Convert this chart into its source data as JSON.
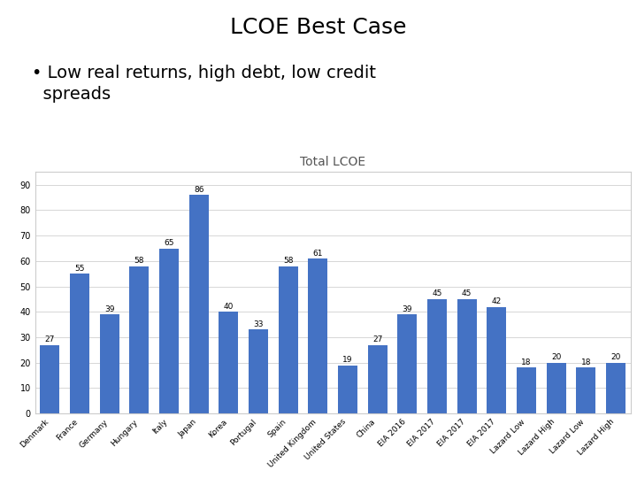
{
  "title": "LCOE Best Case",
  "subtitle_line1": "• Low real returns, high debt, low credit",
  "subtitle_line2": "  spreads",
  "chart_title": "Total LCOE",
  "categories": [
    "Denmark",
    "France",
    "Germany",
    "Hungary",
    "Italy",
    "Japan",
    "Korea",
    "Portugal",
    "Spain",
    "United Kingdom",
    "United States",
    "China",
    "EIA 2016",
    "EIA 2017",
    "EIA 2017",
    "EIA 2017",
    "Lazard Low",
    "Lazard High",
    "Lazard Low",
    "Lazard High"
  ],
  "values": [
    27,
    55,
    39,
    58,
    65,
    86,
    40,
    33,
    58,
    61,
    19,
    27,
    39,
    45,
    45,
    42,
    18,
    20,
    18,
    20
  ],
  "bar_color": "#4472C4",
  "background_color": "#ffffff",
  "ylim": [
    0,
    95
  ],
  "yticks": [
    0,
    10,
    20,
    30,
    40,
    50,
    60,
    70,
    80,
    90
  ],
  "title_fontsize": 18,
  "subtitle_fontsize": 14,
  "chart_title_fontsize": 10,
  "value_label_fontsize": 6.5,
  "tick_label_fontsize": 6.5,
  "ytick_label_fontsize": 7
}
